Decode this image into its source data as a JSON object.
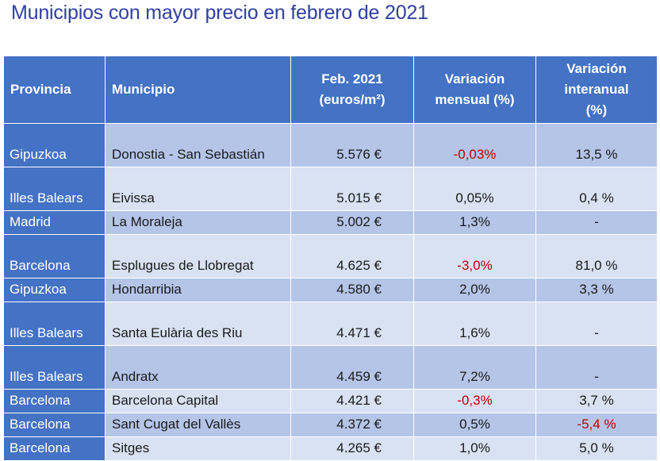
{
  "title": "Municipios con mayor precio en febrero de 2021",
  "table": {
    "headers": {
      "provincia": "Provincia",
      "municipio": "Municipio",
      "precio": [
        "Feb. 2021",
        "(euros/m²)"
      ],
      "mensual": [
        "Variación",
        "mensual (%)"
      ],
      "interanual": [
        "Variación",
        "interanual",
        "(%)"
      ]
    },
    "rows": [
      {
        "provincia": "Gipuzkoa",
        "municipio": "Donostia - San Sebastián",
        "precio": "5.576 €",
        "mensual": "-0,03%",
        "interanual": "13,5 %",
        "mensual_neg": true,
        "interanual_neg": false
      },
      {
        "provincia": "Illes Balears",
        "municipio": "Eivissa",
        "precio": "5.015 €",
        "mensual": "0,05%",
        "interanual": "0,4 %",
        "mensual_neg": false,
        "interanual_neg": false
      },
      {
        "provincia": "Madrid",
        "municipio": "La Moraleja",
        "precio": "5.002 €",
        "mensual": "1,3%",
        "interanual": "-",
        "mensual_neg": false,
        "interanual_neg": false
      },
      {
        "provincia": "Barcelona",
        "municipio": "Esplugues de Llobregat",
        "precio": "4.625 €",
        "mensual": "-3,0%",
        "interanual": "81,0 %",
        "mensual_neg": true,
        "interanual_neg": false
      },
      {
        "provincia": "Gipuzkoa",
        "municipio": "Hondarribia",
        "precio": "4.580 €",
        "mensual": "2,0%",
        "interanual": "3,3 %",
        "mensual_neg": false,
        "interanual_neg": false
      },
      {
        "provincia": "Illes Balears",
        "municipio": "Santa Eulària des Riu",
        "precio": "4.471 €",
        "mensual": "1,6%",
        "interanual": "-",
        "mensual_neg": false,
        "interanual_neg": false
      },
      {
        "provincia": "Illes Balears",
        "municipio": "Andratx",
        "precio": "4.459 €",
        "mensual": "7,2%",
        "interanual": "-",
        "mensual_neg": false,
        "interanual_neg": false
      },
      {
        "provincia": "Barcelona",
        "municipio": "Barcelona Capital",
        "precio": "4.421 €",
        "mensual": "-0,3%",
        "interanual": "3,7 %",
        "mensual_neg": true,
        "interanual_neg": false
      },
      {
        "provincia": "Barcelona",
        "municipio": "Sant Cugat del Vallès",
        "precio": "4.372 €",
        "mensual": "0,5%",
        "interanual": "-5,4 %",
        "mensual_neg": false,
        "interanual_neg": true
      },
      {
        "provincia": "Barcelona",
        "municipio": "Sitges",
        "precio": "4.265 €",
        "mensual": "1,0%",
        "interanual": "5,0 %",
        "mensual_neg": false,
        "interanual_neg": false
      }
    ]
  },
  "colors": {
    "title": "#2f3fa3",
    "header_bg": "#4472c4",
    "row_dark": "#b4c5e8",
    "row_light": "#d9e2f3",
    "negative": "#c00000"
  }
}
